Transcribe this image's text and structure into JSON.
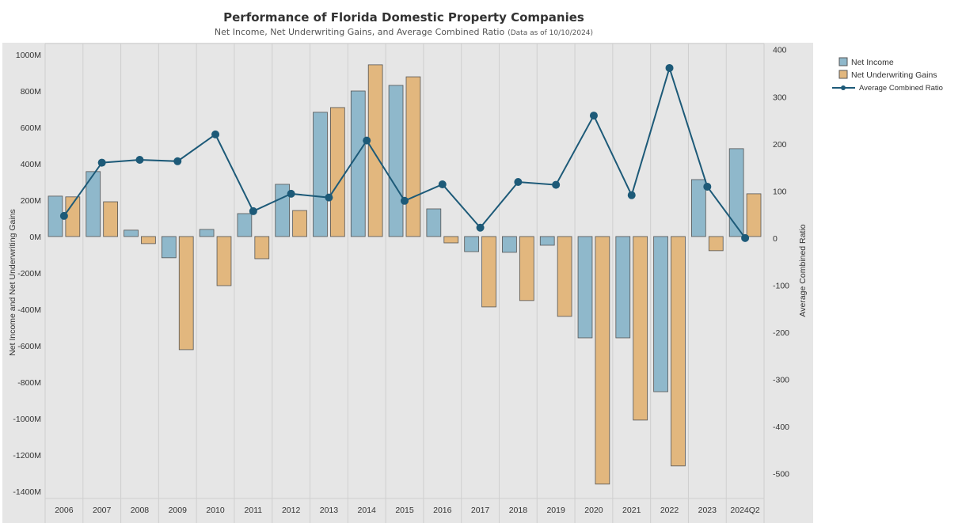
{
  "chart_data": {
    "type": "bar",
    "title": "Performance of Florida Domestic Property Companies",
    "subtitle": "Net Income, Net Underwriting Gains, and Average Combined Ratio",
    "subtitle_note": "(Data as of 10/10/2024)",
    "categories": [
      "2006",
      "2007",
      "2008",
      "2009",
      "2010",
      "2011",
      "2012",
      "2013",
      "2014",
      "2015",
      "2016",
      "2017",
      "2018",
      "2019",
      "2020",
      "2021",
      "2022",
      "2023",
      "2024Q2"
    ],
    "series": [
      {
        "name": "Net Income",
        "type": "bar",
        "axis": "left",
        "color": "#8fb8cb",
        "values": [
          222,
          357,
          35,
          -117,
          39,
          126,
          287,
          683,
          800,
          831,
          152,
          -83,
          -87,
          -48,
          -557,
          -557,
          -853,
          313,
          483
        ]
      },
      {
        "name": "Net Underwriting Gains",
        "type": "bar",
        "axis": "left",
        "color": "#e2b77e",
        "values": [
          218,
          191,
          -39,
          -622,
          -270,
          -122,
          143,
          709,
          944,
          878,
          -35,
          -387,
          -352,
          -439,
          -1361,
          -1009,
          -1261,
          -78,
          235
        ]
      },
      {
        "name": "Average Combined Ratio",
        "type": "line",
        "axis": "right",
        "color": "#1d5a78",
        "values": [
          47,
          160,
          166,
          163,
          220,
          57,
          94,
          86,
          207,
          79,
          114,
          22,
          119,
          113,
          260,
          91,
          361,
          109,
          0
        ]
      }
    ],
    "ylabel": "Net Income and Net Underwriting Gains",
    "y2label": "Average Combined Ratio",
    "ylim": [
      -1440,
      1061
    ],
    "y2lim": [
      -553,
      413
    ],
    "yticks": [
      1000,
      800,
      600,
      400,
      200,
      0,
      -200,
      -400,
      -600,
      -800,
      -1000,
      -1200,
      -1400
    ],
    "ytick_labels": [
      "1000M",
      "800M",
      "600M",
      "400M",
      "200M",
      "0M",
      "-200M",
      "-400M",
      "-600M",
      "-800M",
      "-1000M",
      "-1200M",
      "-1400M"
    ],
    "y2ticks": [
      400,
      300,
      200,
      100,
      0,
      -100,
      -200,
      -300,
      -400,
      -500
    ],
    "y2tick_labels": [
      "400",
      "300",
      "200",
      "100",
      "0",
      "-100",
      "-200",
      "-300",
      "-400",
      "-500"
    ],
    "legend_position": "right",
    "grid": "vertical"
  }
}
